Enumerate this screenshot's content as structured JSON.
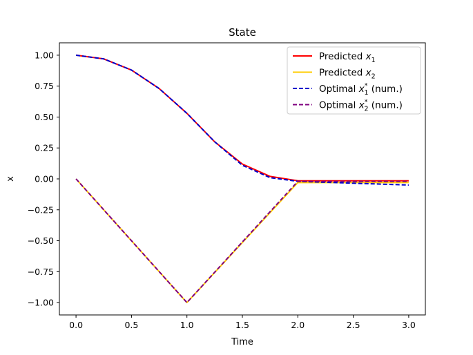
{
  "chart_data": {
    "type": "line",
    "title": "State",
    "xlabel": "Time",
    "ylabel": "x",
    "xlim": [
      -0.15,
      3.15
    ],
    "ylim": [
      -1.1,
      1.1
    ],
    "xticks": [
      0.0,
      0.5,
      1.0,
      1.5,
      2.0,
      2.5,
      3.0
    ],
    "xtick_labels": [
      "0.0",
      "0.5",
      "1.0",
      "1.5",
      "2.0",
      "2.5",
      "3.0"
    ],
    "yticks": [
      1.0,
      0.75,
      0.5,
      0.25,
      0.0,
      -0.25,
      -0.5,
      -0.75,
      -1.0
    ],
    "ytick_labels": [
      "1.00",
      "0.75",
      "0.50",
      "0.25",
      "0.00",
      "−0.25",
      "−0.50",
      "−0.75",
      "−1.00"
    ],
    "grid": false,
    "legend_position": "top-right",
    "series": [
      {
        "name": "Predicted x1",
        "legend_main": "Predicted ",
        "legend_var": "x",
        "legend_sub": "1",
        "legend_sup": "",
        "legend_suffix": "",
        "color": "#ff0000",
        "style": "solid",
        "x": [
          0.0,
          0.25,
          0.5,
          0.75,
          1.0,
          1.25,
          1.5,
          1.75,
          2.0,
          2.5,
          3.0
        ],
        "y": [
          1.0,
          0.97,
          0.88,
          0.73,
          0.53,
          0.3,
          0.12,
          0.02,
          -0.015,
          -0.015,
          -0.015
        ]
      },
      {
        "name": "Predicted x2",
        "legend_main": "Predicted ",
        "legend_var": "x",
        "legend_sub": "2",
        "legend_sup": "",
        "legend_suffix": "",
        "color": "#ffcc00",
        "style": "solid",
        "x": [
          0.0,
          1.0,
          2.0,
          2.5,
          3.0
        ],
        "y": [
          0.0,
          -1.0,
          -0.03,
          -0.03,
          -0.03
        ]
      },
      {
        "name": "Optimal x1* (num.)",
        "legend_main": "Optimal ",
        "legend_var": "x",
        "legend_sub": "1",
        "legend_sup": "*",
        "legend_suffix": " (num.)",
        "color": "#0000cc",
        "style": "dashed",
        "x": [
          0.0,
          0.25,
          0.5,
          0.75,
          1.0,
          1.25,
          1.5,
          1.75,
          2.0,
          2.5,
          3.0
        ],
        "y": [
          1.0,
          0.97,
          0.88,
          0.73,
          0.53,
          0.3,
          0.11,
          0.01,
          -0.02,
          -0.035,
          -0.05
        ]
      },
      {
        "name": "Optimal x2* (num.)",
        "legend_main": "Optimal ",
        "legend_var": "x",
        "legend_sub": "2",
        "legend_sup": "*",
        "legend_suffix": " (num.)",
        "color": "#800080",
        "style": "dashed",
        "x": [
          0.0,
          1.0,
          2.0,
          2.5,
          3.0
        ],
        "y": [
          0.0,
          -1.0,
          -0.02,
          -0.02,
          -0.02
        ]
      }
    ]
  }
}
